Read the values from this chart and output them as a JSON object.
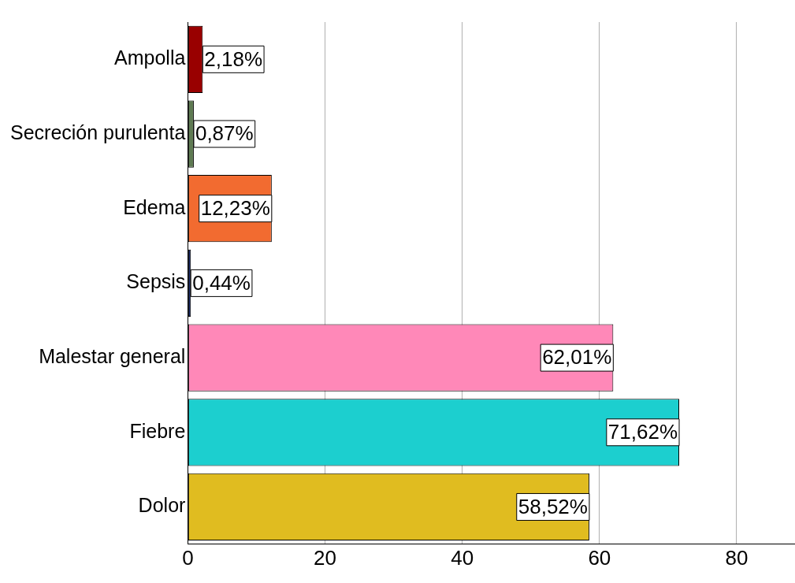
{
  "chart_data": {
    "type": "bar",
    "orientation": "horizontal",
    "categories": [
      "Ampolla",
      "Secreción purulenta",
      "Edema",
      "Sepsis",
      "Malestar general",
      "Fiebre",
      "Dolor"
    ],
    "values": [
      2.18,
      0.87,
      12.23,
      0.44,
      62.01,
      71.62,
      58.52
    ],
    "colors": [
      "#990000",
      "#5e7a52",
      "#f26b30",
      "#1a2a6a",
      "#ff88b8",
      "#1ccfcf",
      "#e0bc20"
    ],
    "value_labels": [
      "2,18%",
      "0,87%",
      "12,23%",
      "0,44%",
      "62,01%",
      "71,62%",
      "58,52%"
    ],
    "xlim": [
      0,
      88.5
    ],
    "xticks": [
      0,
      20,
      40,
      60,
      80
    ],
    "grid": "x",
    "legend": false
  }
}
